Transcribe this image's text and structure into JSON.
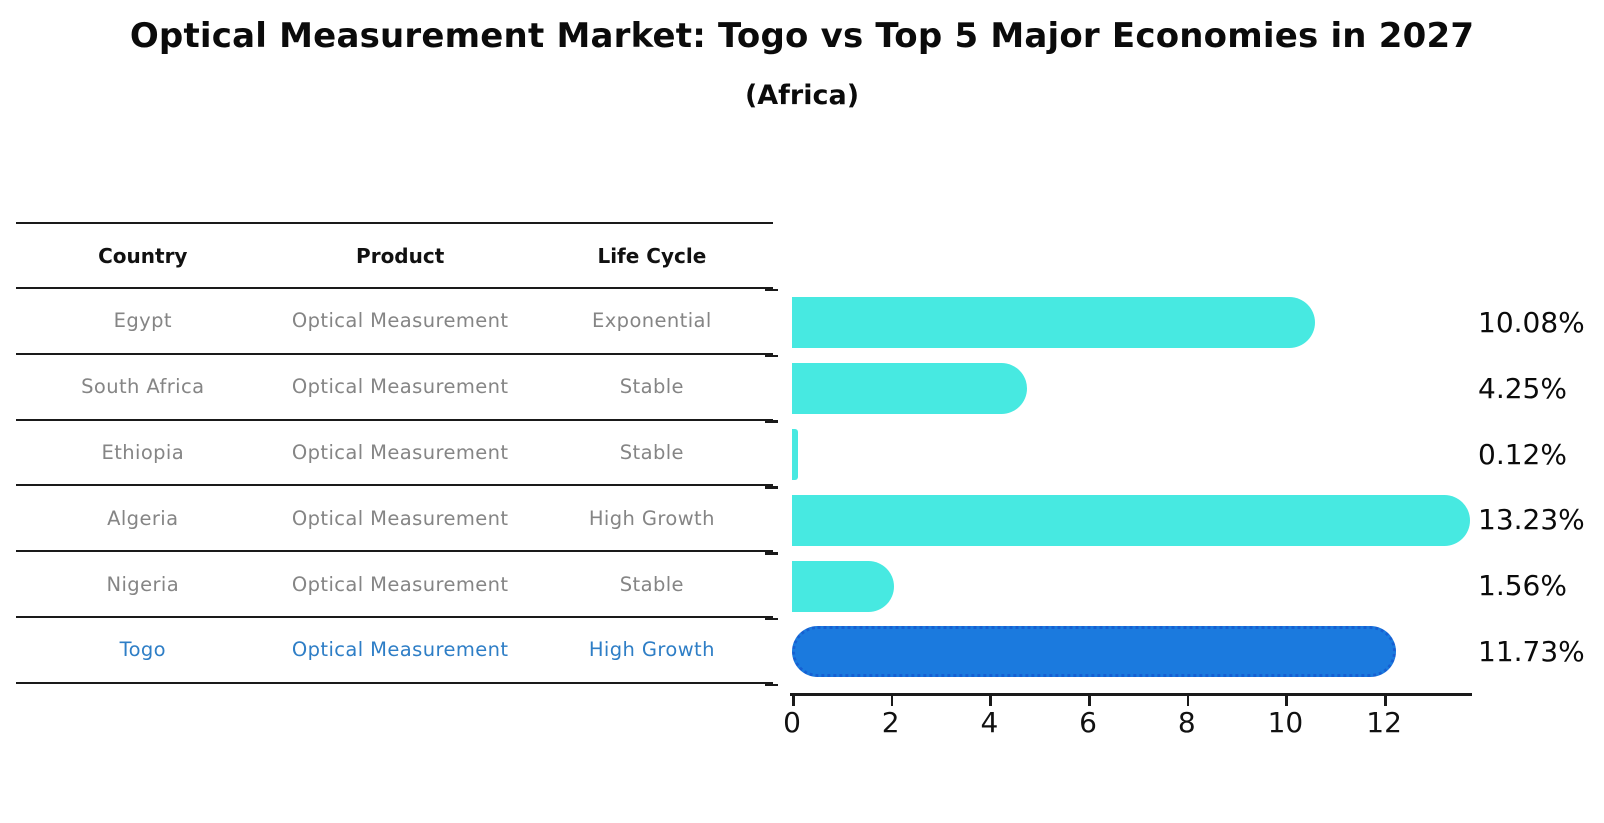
{
  "title": "Optical Measurement Market: Togo vs Top 5 Major Economies in 2027",
  "subtitle": "(Africa)",
  "table": {
    "columns": [
      "Country",
      "Product",
      "Life Cycle"
    ],
    "rows": [
      {
        "country": "Egypt",
        "product": "Optical Measurement",
        "life_cycle": "Exponential",
        "highlight": false
      },
      {
        "country": "South Africa",
        "product": "Optical Measurement",
        "life_cycle": "Stable",
        "highlight": false
      },
      {
        "country": "Ethiopia",
        "product": "Optical Measurement",
        "life_cycle": "Stable",
        "highlight": false
      },
      {
        "country": "Algeria",
        "product": "Optical Measurement",
        "life_cycle": "High Growth",
        "highlight": false
      },
      {
        "country": "Nigeria",
        "product": "Optical Measurement",
        "life_cycle": "Stable",
        "highlight": false
      },
      {
        "country": "Togo",
        "product": "Optical Measurement",
        "life_cycle": "High Growth",
        "highlight": true
      }
    ]
  },
  "chart_data": {
    "type": "bar",
    "orientation": "horizontal",
    "categories": [
      "Egypt",
      "South Africa",
      "Ethiopia",
      "Algeria",
      "Nigeria",
      "Togo"
    ],
    "values": [
      10.08,
      4.25,
      0.12,
      13.23,
      1.56,
      11.73
    ],
    "value_labels": [
      "10.08%",
      "4.25%",
      "0.12%",
      "13.23%",
      "1.56%",
      "11.73%"
    ],
    "highlight_index": 5,
    "xlim": [
      0,
      13.74
    ],
    "xticks": [
      0,
      2,
      4,
      6,
      8,
      10,
      12
    ],
    "grid": false,
    "legend": "none",
    "bar_color": "#47e9e1",
    "highlight_bar_color": "#1b7ade",
    "highlight_edge_color": "#1660d2"
  },
  "colors": {
    "row_text": "#858585",
    "highlight_text": "#2e7ec6",
    "line": "#1a1a1a",
    "title_text": "#0b0b0b"
  }
}
